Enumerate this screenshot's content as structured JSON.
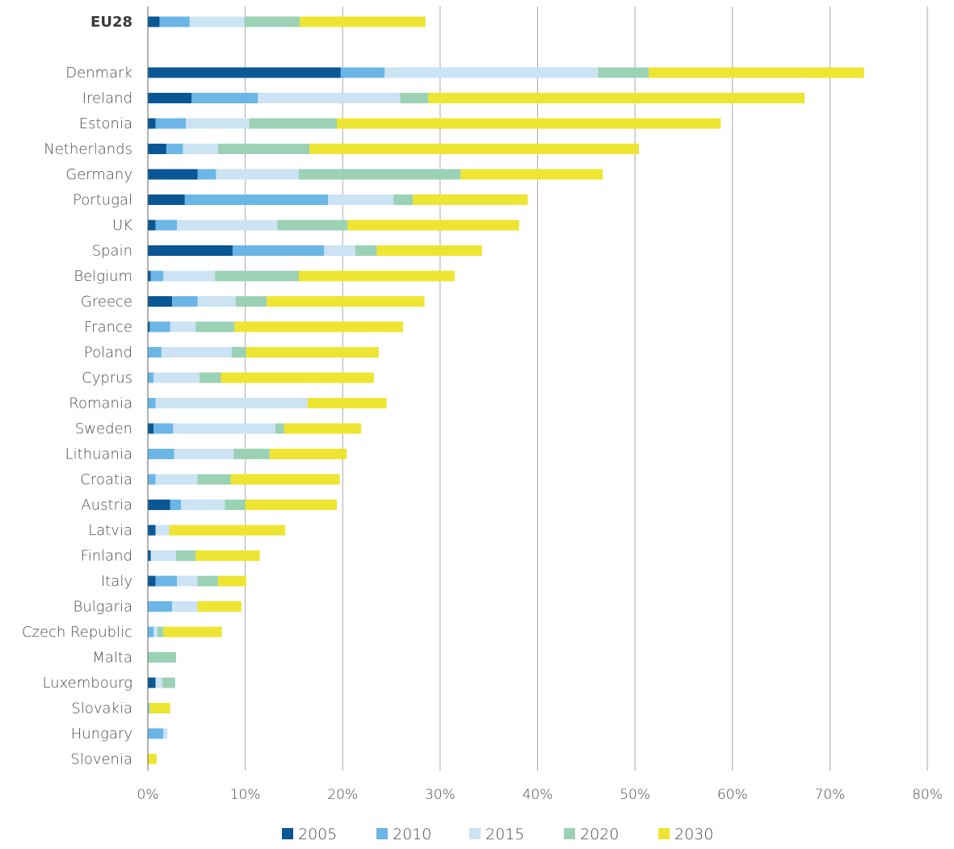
{
  "chart_data": {
    "type": "bar",
    "orientation": "horizontal",
    "stacked": true,
    "categories": [
      "EU28",
      "Denmark",
      "Ireland",
      "Estonia",
      "Netherlands",
      "Germany",
      "Portugal",
      "UK",
      "Spain",
      "Belgium",
      "Greece",
      "France",
      "Poland",
      "Cyprus",
      "Romania",
      "Sweden",
      "Lithuania",
      "Croatia",
      "Austria",
      "Latvia",
      "Finland",
      "Italy",
      "Bulgaria",
      "Czech Republic",
      "Malta",
      "Luxembourg",
      "Slovakia",
      "Hungary",
      "Slovenia"
    ],
    "bold_categories": [
      "EU28"
    ],
    "series": [
      {
        "name": "2005",
        "color": "#0a5796",
        "values": [
          1.2,
          19.8,
          4.5,
          0.8,
          1.9,
          5.1,
          3.8,
          0.8,
          8.7,
          0.3,
          2.5,
          0.2,
          0,
          0,
          0,
          0.6,
          0,
          0,
          2.3,
          0.8,
          0.3,
          0.8,
          0,
          0,
          0,
          0.8,
          0,
          0,
          0
        ]
      },
      {
        "name": "2010",
        "color": "#6bb6e6",
        "values": [
          3.1,
          4.5,
          6.8,
          3.1,
          1.7,
          1.9,
          14.7,
          2.2,
          9.4,
          1.3,
          2.6,
          2.1,
          1.4,
          0.6,
          0.8,
          2.0,
          2.7,
          0.8,
          1.1,
          0,
          0,
          2.2,
          2.5,
          0.6,
          0,
          0,
          0,
          1.6,
          0
        ]
      },
      {
        "name": "2015",
        "color": "#cce3f4",
        "values": [
          5.6,
          21.9,
          14.6,
          6.5,
          3.6,
          8.5,
          6.7,
          10.3,
          3.2,
          5.3,
          3.9,
          2.6,
          7.2,
          4.7,
          15.6,
          10.5,
          6.1,
          4.3,
          4.5,
          1.4,
          2.6,
          2.1,
          2.6,
          0.4,
          0,
          0.7,
          0,
          0.4,
          0
        ]
      },
      {
        "name": "2020",
        "color": "#9bd1b5",
        "values": [
          5.7,
          5.2,
          2.9,
          9.0,
          9.4,
          16.6,
          2.0,
          7.2,
          2.2,
          8.6,
          3.2,
          4.0,
          1.5,
          2.2,
          0,
          0.9,
          3.7,
          3.4,
          2.1,
          0,
          2.0,
          2.1,
          0,
          0.6,
          2.9,
          1.3,
          0.2,
          0,
          0
        ]
      },
      {
        "name": "2030",
        "color": "#eee532",
        "values": [
          12.9,
          22.1,
          38.6,
          39.4,
          33.8,
          14.6,
          11.8,
          17.6,
          10.8,
          16.0,
          16.2,
          17.3,
          13.6,
          15.7,
          8.1,
          7.9,
          7.9,
          11.2,
          9.4,
          11.9,
          6.6,
          2.9,
          4.5,
          6.0,
          0,
          0,
          2.1,
          0,
          0.9
        ]
      }
    ],
    "xlim": [
      0,
      80
    ],
    "xticks": [
      "0%",
      "10%",
      "20%",
      "30%",
      "40%",
      "50%",
      "60%",
      "70%",
      "80%"
    ],
    "title": "",
    "xlabel": "",
    "ylabel": "",
    "grid": "vertical",
    "legend": "bottom"
  }
}
